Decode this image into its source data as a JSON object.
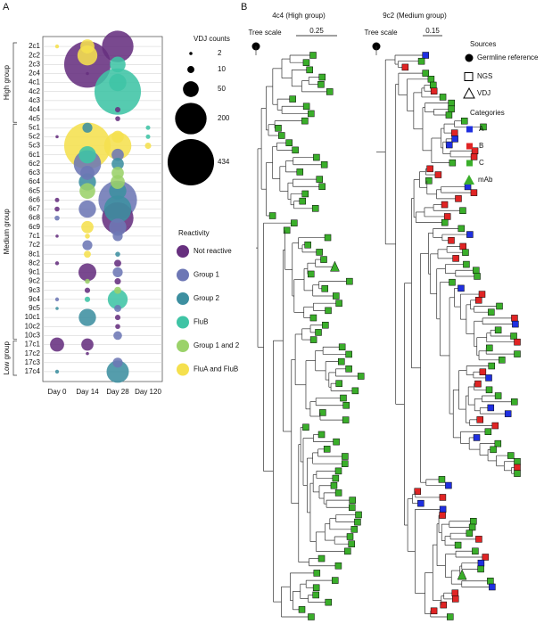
{
  "chart_data": {
    "type": "bubble",
    "panel_label": "A",
    "rows": [
      "2c1",
      "2c2",
      "2c3",
      "2c4",
      "4c1",
      "4c2",
      "4c3",
      "4c4",
      "4c5",
      "5c1",
      "5c2",
      "5c3",
      "6c1",
      "6c2",
      "6c3",
      "6c4",
      "6c5",
      "6c6",
      "6c7",
      "6c8",
      "6c9",
      "7c1",
      "7c2",
      "8c1",
      "8c2",
      "9c1",
      "9c2",
      "9c3",
      "9c4",
      "9c5",
      "10c1",
      "10c2",
      "10c3",
      "17c1",
      "17c2",
      "17c3",
      "17c4"
    ],
    "columns": [
      "Day 0",
      "Day 14",
      "Day 28",
      "Day 120"
    ],
    "row_groups": [
      {
        "label": "High group",
        "from": "2c1",
        "to": "4c5"
      },
      {
        "label": "Medium group",
        "from": "5c1",
        "to": "10c3"
      },
      {
        "label": "Low group",
        "from": "17c1",
        "to": "17c4"
      }
    ],
    "size_legend": {
      "title": "VDJ counts",
      "values": [
        2,
        10,
        50,
        200,
        434
      ]
    },
    "legend_title": "Reactivity",
    "series": [
      {
        "name": "Not reactive",
        "color": "#67307f",
        "points": [
          {
            "row": "2c1",
            "day": "Day 28",
            "count": 200
          },
          {
            "row": "2c3",
            "day": "Day 14",
            "count": 434
          },
          {
            "row": "2c4",
            "day": "Day 14",
            "count": 2
          },
          {
            "row": "4c5",
            "day": "Day 28",
            "count": 5
          },
          {
            "row": "6c8",
            "day": "Day 28",
            "count": 200
          },
          {
            "row": "6c7",
            "day": "Day 0",
            "count": 5
          },
          {
            "row": "6c6",
            "day": "Day 0",
            "count": 4
          },
          {
            "row": "8c2",
            "day": "Day 0",
            "count": 3
          },
          {
            "row": "8c2",
            "day": "Day 28",
            "count": 10
          },
          {
            "row": "9c1",
            "day": "Day 14",
            "count": 64
          },
          {
            "row": "9c2",
            "day": "Day 28",
            "count": 8
          },
          {
            "row": "9c3",
            "day": "Day 14",
            "count": 6
          },
          {
            "row": "10c1",
            "day": "Day 28",
            "count": 6
          },
          {
            "row": "10c2",
            "day": "Day 28",
            "count": 5
          },
          {
            "row": "17c1",
            "day": "Day 0",
            "count": 40
          },
          {
            "row": "17c1",
            "day": "Day 14",
            "count": 30
          },
          {
            "row": "17c2",
            "day": "Day 14",
            "count": 2
          },
          {
            "row": "4c4",
            "day": "Day 28",
            "count": 6
          },
          {
            "row": "7c1",
            "day": "Day 0",
            "count": 2
          },
          {
            "row": "5c2",
            "day": "Day 0",
            "count": 2
          }
        ]
      },
      {
        "name": "Group 1",
        "color": "#6d77b5",
        "points": [
          {
            "row": "6c6",
            "day": "Day 28",
            "count": 300
          },
          {
            "row": "6c2",
            "day": "Day 14",
            "count": 150
          },
          {
            "row": "6c3",
            "day": "Day 14",
            "count": 40
          },
          {
            "row": "6c7",
            "day": "Day 14",
            "count": 60
          },
          {
            "row": "6c9",
            "day": "Day 28",
            "count": 60
          },
          {
            "row": "7c1",
            "day": "Day 28",
            "count": 20
          },
          {
            "row": "7c2",
            "day": "Day 14",
            "count": 20
          },
          {
            "row": "9c1",
            "day": "Day 28",
            "count": 20
          },
          {
            "row": "9c5",
            "day": "Day 28",
            "count": 10
          },
          {
            "row": "10c3",
            "day": "Day 28",
            "count": 15
          },
          {
            "row": "17c3",
            "day": "Day 28",
            "count": 20
          },
          {
            "row": "6c1",
            "day": "Day 28",
            "count": 30
          },
          {
            "row": "6c8",
            "day": "Day 0",
            "count": 5
          },
          {
            "row": "9c4",
            "day": "Day 0",
            "count": 3
          }
        ]
      },
      {
        "name": "Group 2",
        "color": "#3d8fa0",
        "points": [
          {
            "row": "17c4",
            "day": "Day 28",
            "count": 100
          },
          {
            "row": "6c4",
            "day": "Day 14",
            "count": 60
          },
          {
            "row": "6c7",
            "day": "Day 28",
            "count": 150
          },
          {
            "row": "6c5",
            "day": "Day 28",
            "count": 60
          },
          {
            "row": "10c1",
            "day": "Day 14",
            "count": 60
          },
          {
            "row": "9c5",
            "day": "Day 0",
            "count": 2
          },
          {
            "row": "17c4",
            "day": "Day 0",
            "count": 3
          },
          {
            "row": "5c1",
            "day": "Day 14",
            "count": 20
          },
          {
            "row": "6c2",
            "day": "Day 28",
            "count": 30
          },
          {
            "row": "8c1",
            "day": "Day 28",
            "count": 5
          }
        ]
      },
      {
        "name": "FluB",
        "color": "#3fc4a5",
        "points": [
          {
            "row": "4c2",
            "day": "Day 28",
            "count": 434
          },
          {
            "row": "2c3",
            "day": "Day 28",
            "count": 50
          },
          {
            "row": "4c1",
            "day": "Day 28",
            "count": 60
          },
          {
            "row": "5c1",
            "day": "Day 120",
            "count": 4
          },
          {
            "row": "9c4",
            "day": "Day 28",
            "count": 80
          },
          {
            "row": "6c1",
            "day": "Day 14",
            "count": 60
          },
          {
            "row": "9c4",
            "day": "Day 14",
            "count": 6
          },
          {
            "row": "5c2",
            "day": "Day 120",
            "count": 4
          }
        ]
      },
      {
        "name": "Group 1 and 2",
        "color": "#9bd26a",
        "points": [
          {
            "row": "6c4",
            "day": "Day 28",
            "count": 40
          },
          {
            "row": "6c5",
            "day": "Day 14",
            "count": 50
          },
          {
            "row": "6c3",
            "day": "Day 28",
            "count": 30
          },
          {
            "row": "9c3",
            "day": "Day 28",
            "count": 10
          },
          {
            "row": "9c2",
            "day": "Day 14",
            "count": 5
          }
        ]
      },
      {
        "name": "FluA and FluB",
        "color": "#f5e04e",
        "points": [
          {
            "row": "5c3",
            "day": "Day 14",
            "count": 434
          },
          {
            "row": "5c3",
            "day": "Day 28",
            "count": 150
          },
          {
            "row": "2c1",
            "day": "Day 14",
            "count": 40
          },
          {
            "row": "2c2",
            "day": "Day 14",
            "count": 80
          },
          {
            "row": "2c1",
            "day": "Day 0",
            "count": 3
          },
          {
            "row": "5c3",
            "day": "Day 120",
            "count": 8
          },
          {
            "row": "6c9",
            "day": "Day 14",
            "count": 30
          },
          {
            "row": "8c1",
            "day": "Day 14",
            "count": 10
          },
          {
            "row": "7c1",
            "day": "Day 14",
            "count": 5
          },
          {
            "row": "5c2",
            "day": "Day 28",
            "count": 30
          }
        ]
      }
    ]
  },
  "panel_b": {
    "label": "B",
    "trees": [
      {
        "title": "4c4 (High group)",
        "scale_label": "Tree scale",
        "scale": 0.25
      },
      {
        "title": "9c2 (Medium group)",
        "scale_label": "Tree scale",
        "scale": 0.15
      }
    ],
    "sources": {
      "title": "Sources",
      "items": [
        "Germline reference",
        "NGS",
        "VDJ"
      ]
    },
    "categories": {
      "title": "Categories",
      "items": [
        {
          "name": "A",
          "color": "#1f2fe0"
        },
        {
          "name": "B",
          "color": "#e02424"
        },
        {
          "name": "C",
          "color": "#3aae2a"
        },
        {
          "name": "mAb",
          "color": "#3aae2a"
        }
      ]
    }
  }
}
